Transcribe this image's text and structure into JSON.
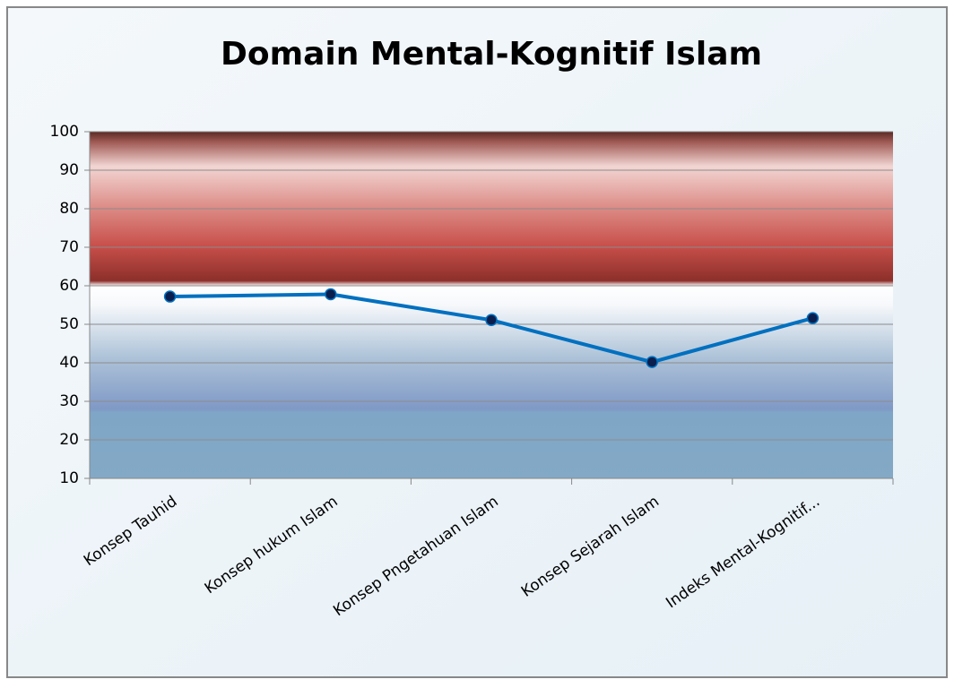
{
  "chart_data": {
    "type": "line",
    "title": "Domain Mental-Kognitif Islam",
    "categories": [
      "Konsep Tauhid",
      "Konsep hukum Islam",
      "Konsep Pngetahuan Islam",
      "Konsep Sejarah Islam",
      "Indeks Mental-Kognitif..."
    ],
    "values": [
      57.2,
      57.8,
      51.1,
      40.2,
      51.6
    ],
    "color": "#0070c0",
    "ylim": [
      10,
      100
    ],
    "yticks": [
      10,
      20,
      30,
      40,
      50,
      60,
      70,
      80,
      90,
      100
    ],
    "grid": true
  }
}
